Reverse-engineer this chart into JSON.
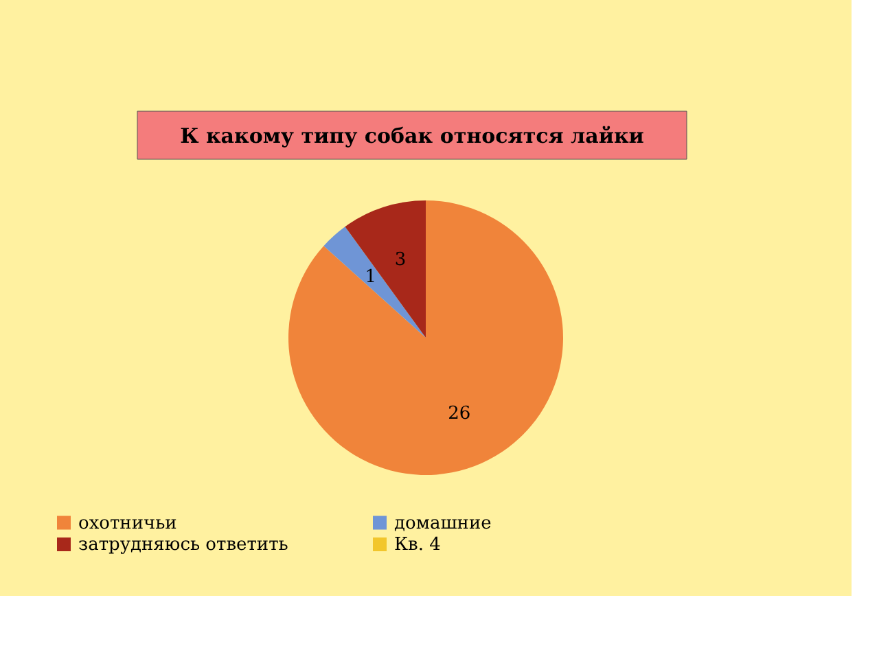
{
  "chart_data": {
    "type": "pie",
    "title": "К какому типу собак относятся лайки",
    "categories": [
      "охотничьи",
      "домашние",
      "затрудняюсь ответить",
      "Кв. 4"
    ],
    "values": [
      26,
      1,
      3,
      0
    ],
    "colors": [
      "#f0843a",
      "#6f95d6",
      "#a8281a",
      "#f2c62c"
    ],
    "value_labels": [
      "26",
      "1",
      "3",
      null
    ],
    "legend": "bottom"
  }
}
